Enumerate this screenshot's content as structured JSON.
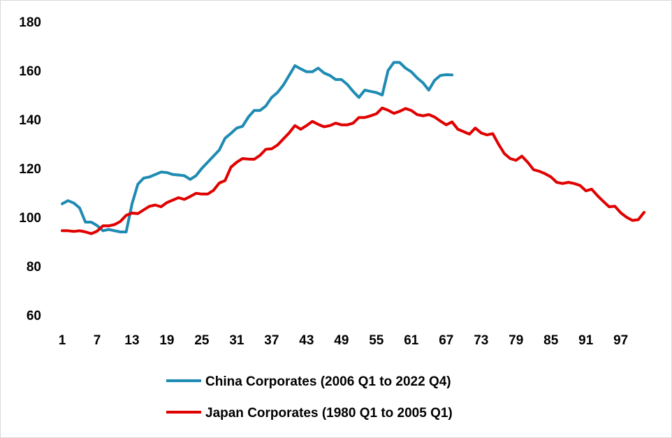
{
  "chart_data": {
    "type": "line",
    "x_start": 1,
    "x_end": 101,
    "x_tick_labels": [
      "1",
      "7",
      "13",
      "19",
      "25",
      "31",
      "37",
      "43",
      "49",
      "55",
      "61",
      "67",
      "73",
      "79",
      "85",
      "91",
      "97"
    ],
    "ylim": [
      60,
      180
    ],
    "y_tick_labels": [
      "60",
      "80",
      "100",
      "120",
      "140",
      "160",
      "180"
    ],
    "grid": false,
    "legend_position": "bottom",
    "series": [
      {
        "name": "China Corporates (2006 Q1 to 2022 Q4)",
        "color": "#1f8bb3",
        "values": [
          105.5,
          106.8,
          105.8,
          103.8,
          98.0,
          98.0,
          96.6,
          94.5,
          95.0,
          94.5,
          94.0,
          94.0,
          105.5,
          113.5,
          116.0,
          116.5,
          117.5,
          118.5,
          118.3,
          117.5,
          117.3,
          117.0,
          115.5,
          117.0,
          120.0,
          122.5,
          125.0,
          127.5,
          132.3,
          134.3,
          136.5,
          137.2,
          141.0,
          143.7,
          143.7,
          145.5,
          149.0,
          151.0,
          154.0,
          158.0,
          162.0,
          160.7,
          159.5,
          159.5,
          161.0,
          159.0,
          158.0,
          156.3,
          156.3,
          154.3,
          151.5,
          149.0,
          152.0,
          151.5,
          151.0,
          150.0,
          160.0,
          163.3,
          163.3,
          161.0,
          159.5,
          157.0,
          155.0,
          152.0,
          156.0,
          158.0,
          158.3,
          158.2
        ]
      },
      {
        "name": "Japan Corporates (1980 Q1 to 2005 Q1)",
        "color": "#e00000",
        "values": [
          94.5,
          94.5,
          94.2,
          94.5,
          94.0,
          93.3,
          94.3,
          96.5,
          96.5,
          97.0,
          98.3,
          100.8,
          101.7,
          101.5,
          103.0,
          104.5,
          105.0,
          104.3,
          106.0,
          107.0,
          108.0,
          107.3,
          108.5,
          109.8,
          109.5,
          109.5,
          111.0,
          114.0,
          115.0,
          120.5,
          122.5,
          124.0,
          123.8,
          123.7,
          125.3,
          127.8,
          128.0,
          129.5,
          132.0,
          134.5,
          137.5,
          136.0,
          137.5,
          139.2,
          138.0,
          137.0,
          137.5,
          138.5,
          137.8,
          137.8,
          138.5,
          140.8,
          140.8,
          141.5,
          142.3,
          144.7,
          143.8,
          142.5,
          143.3,
          144.5,
          143.7,
          142.0,
          141.5,
          142.0,
          141.0,
          139.3,
          137.8,
          139.0,
          136.0,
          135.0,
          134.0,
          136.5,
          134.5,
          133.7,
          134.2,
          129.8,
          126.0,
          124.0,
          123.3,
          125.0,
          122.5,
          119.5,
          118.8,
          117.8,
          116.5,
          114.3,
          113.8,
          114.3,
          113.8,
          113.0,
          110.8,
          111.5,
          108.8,
          106.5,
          104.3,
          104.5,
          101.8,
          100.0,
          98.7,
          99.0,
          102.0
        ]
      }
    ]
  }
}
